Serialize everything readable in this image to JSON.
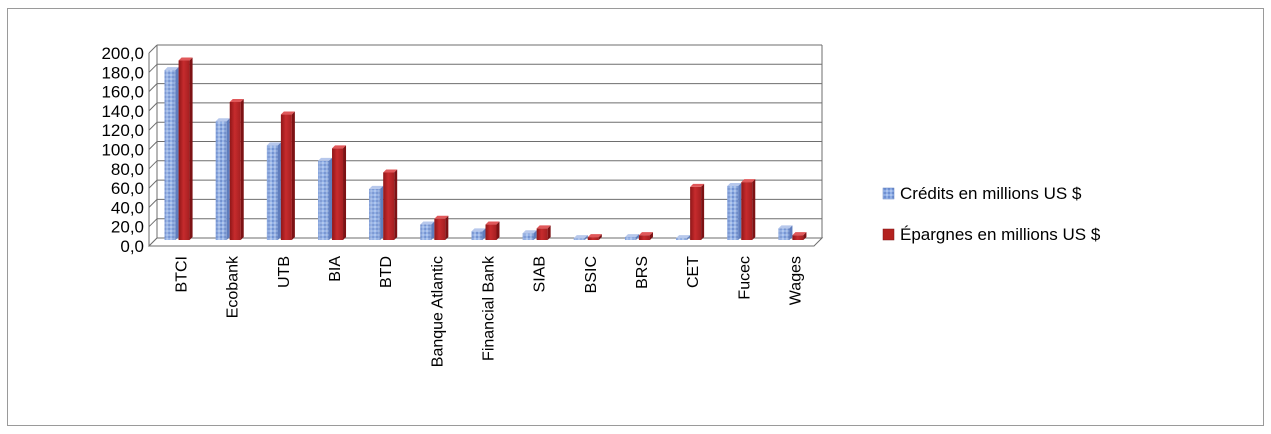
{
  "chart_data": {
    "type": "bar",
    "categories": [
      "BTCI",
      "Ecobank",
      "UTB",
      "BIA",
      "BTD",
      "Banque Atlantic",
      "Financial Bank",
      "SIAB",
      "BSIC",
      "BRS",
      "CET",
      "Fucec",
      "Wages"
    ],
    "series": [
      {
        "name": "Crédits en millions US $",
        "values": [
          176,
          123,
          98,
          82,
          53,
          16,
          9,
          7,
          2,
          3,
          2,
          56,
          12
        ]
      },
      {
        "name": "Épargnes en millions US $",
        "values": [
          186,
          143,
          130,
          95,
          70,
          22,
          16,
          12,
          3,
          5,
          55,
          60,
          5
        ]
      }
    ],
    "ylim": [
      0,
      200
    ],
    "yticks": [
      "0,0",
      "20,0",
      "40,0",
      "60,0",
      "80,0",
      "100,0",
      "120,0",
      "140,0",
      "160,0",
      "180,0",
      "200,0"
    ],
    "grid": true,
    "legend_position": "right",
    "colors": {
      "credits": "#7f9fd8",
      "epargnes": "#c0282a",
      "grid": "#6e6e6e"
    }
  }
}
